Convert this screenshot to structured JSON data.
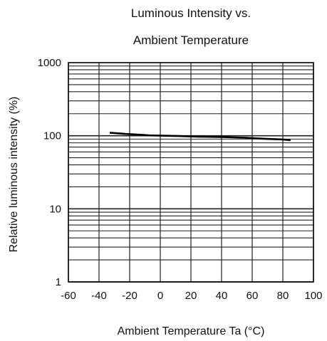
{
  "chart_data": {
    "type": "line",
    "title_lines": [
      "Luminous Intensity vs.",
      "Ambient Temperature"
    ],
    "xlabel": "Ambient Temperature Ta (°C)",
    "ylabel": "Relative luminous intensity   (%)",
    "xlim": [
      -60,
      100
    ],
    "ylim": [
      1,
      1000
    ],
    "y_scale": "log",
    "x_ticks": [
      "-60",
      "-40",
      "-20",
      "0",
      "20",
      "40",
      "60",
      "80",
      "100"
    ],
    "y_ticks": [
      "1",
      "10",
      "100",
      "1000"
    ],
    "grid": true,
    "series": [
      {
        "color": "#000000",
        "x": [
          -33,
          -23,
          -13,
          -7,
          12,
          25,
          40,
          55,
          68,
          80,
          85
        ],
        "y": [
          110,
          106,
          103,
          101,
          99,
          97,
          96,
          94,
          91,
          89,
          87
        ]
      }
    ]
  },
  "colors": {
    "grid": "#222222",
    "frame": "#000000",
    "line": "#000000",
    "text": "#111111"
  }
}
